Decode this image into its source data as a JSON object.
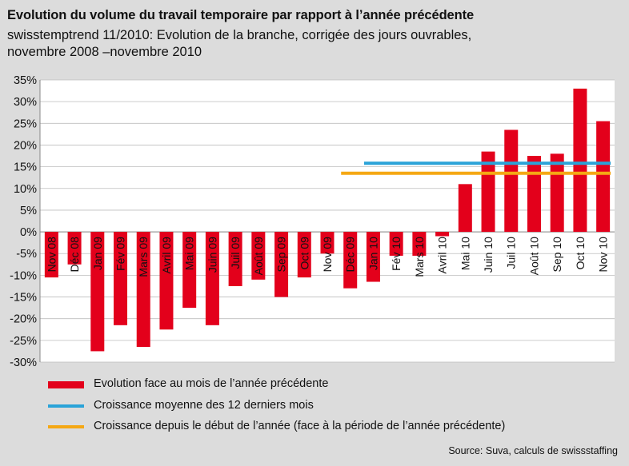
{
  "header": {
    "title": "Evolution du volume du travail temporaire par rapport à l’année précédente",
    "subtitle_line1": "swisstemptrend 11/2010: Evolution de la branche, corrigée des jours ouvrables,",
    "subtitle_line2": "novembre 2008 –novembre 2010"
  },
  "colors": {
    "bars": "#e3001b",
    "avg12": "#2aa3d8",
    "ytd": "#f5a814",
    "plot_bg": "#ffffff",
    "page_bg": "#dcdcdc",
    "grid": "#bdbdbd"
  },
  "chart_data": {
    "type": "bar",
    "title": "Evolution du volume du travail temporaire par rapport à l’année précédente",
    "xlabel": "",
    "ylabel": "",
    "ylim": [
      -30,
      35
    ],
    "yticks": [
      35,
      30,
      25,
      20,
      15,
      10,
      5,
      0,
      -5,
      -10,
      -15,
      -20,
      -25,
      -30
    ],
    "ytick_labels": [
      "35%",
      "30%",
      "25%",
      "20%",
      "15%",
      "10%",
      "5%",
      "0%",
      "-5%",
      "-10%",
      "-15%",
      "-20%",
      "-25%",
      "-30%"
    ],
    "categories": [
      "Nov 08",
      "Déc 08",
      "Jan 09",
      "Fév 09",
      "Mars 09",
      "Avril 09",
      "Mai 09",
      "Juin 09",
      "Juil 09",
      "Août 09",
      "Sep 09",
      "Oct 09",
      "Nov 09",
      "Déc 09",
      "Jan 10",
      "Fév 10",
      "Mars 10",
      "Avril 10",
      "Mai 10",
      "Juin 10",
      "Juil 10",
      "Août 10",
      "Sep 10",
      "Oct 10",
      "Nov 10"
    ],
    "series": [
      {
        "name": "Evolution face au mois de l’année précédente",
        "values": [
          -10.5,
          -7.5,
          -27.5,
          -21.5,
          -26.5,
          -22.5,
          -17.5,
          -21.5,
          -12.5,
          -11,
          -15,
          -10.5,
          -5,
          -13,
          -11.5,
          -5.5,
          -5.5,
          -1,
          11,
          18.5,
          23.5,
          17.5,
          18,
          33,
          25.5
        ]
      }
    ],
    "lines": [
      {
        "name": "Croissance moyenne des 12 derniers mois",
        "value": 15.8,
        "from": "Jan 10",
        "to": "Nov 10"
      },
      {
        "name": "Croissance depuis le début de l’année (face à la période de l’année précédente)",
        "value": 13.5,
        "from": "Déc 09",
        "to": "Nov 10"
      }
    ],
    "source": "Source: Suva, calculs de swissstaffing"
  }
}
